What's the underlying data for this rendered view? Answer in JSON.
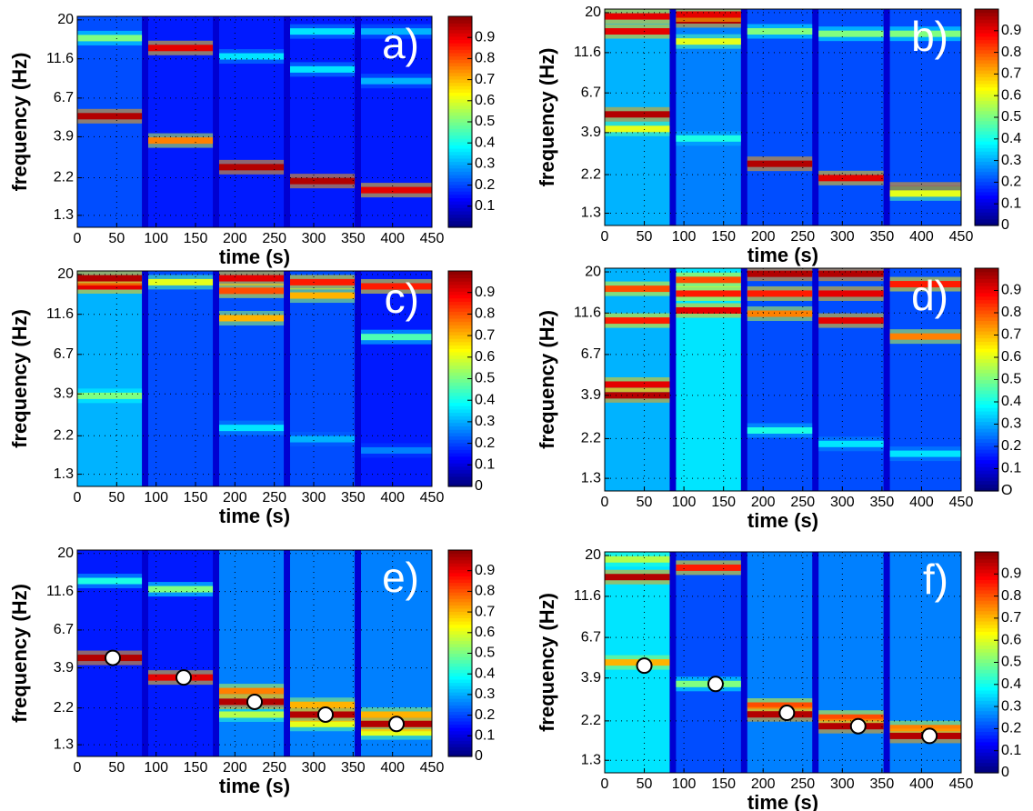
{
  "chart_data": [
    {
      "type": "heatmap",
      "title": "a)",
      "xlabel": "time (s)",
      "ylabel": "frequency (Hz)",
      "xlim": [
        0,
        450
      ],
      "xticks": [
        0,
        50,
        100,
        150,
        200,
        250,
        300,
        350,
        400,
        450
      ],
      "ylim": [
        1.1,
        21
      ],
      "yscale": "log",
      "yticks": [
        1.3,
        2.2,
        3.9,
        6.7,
        11.6,
        20
      ],
      "grid": true,
      "clim": [
        0,
        1
      ],
      "cticks": [
        0.1,
        0.2,
        0.3,
        0.4,
        0.5,
        0.6,
        0.7,
        0.8,
        0.9
      ],
      "background": 0.08,
      "segments": [
        {
          "t": [
            0,
            82
          ],
          "background": 0.2,
          "bands": [
            {
              "f": 5.2,
              "v": 0.95
            },
            {
              "f": 15.5,
              "v": 0.5
            }
          ]
        },
        {
          "t": [
            90,
            172
          ],
          "background": 0.15,
          "bands": [
            {
              "f": 3.7,
              "v": 0.75
            },
            {
              "f": 13.5,
              "v": 0.9
            }
          ]
        },
        {
          "t": [
            180,
            262
          ],
          "background": 0.15,
          "bands": [
            {
              "f": 2.55,
              "v": 0.95
            },
            {
              "f": 12,
              "v": 0.35
            }
          ]
        },
        {
          "t": [
            270,
            352
          ],
          "background": 0.15,
          "bands": [
            {
              "f": 2.1,
              "v": 0.95
            },
            {
              "f": 10,
              "v": 0.35
            },
            {
              "f": 17,
              "v": 0.35
            }
          ]
        },
        {
          "t": [
            360,
            450
          ],
          "background": 0.15,
          "bands": [
            {
              "f": 1.85,
              "v": 0.9
            },
            {
              "f": 8.5,
              "v": 0.3
            },
            {
              "f": 17,
              "v": 0.3
            }
          ]
        }
      ]
    },
    {
      "type": "heatmap",
      "title": "b)",
      "xlabel": "time (s)",
      "ylabel": "frequency (Hz)",
      "xlim": [
        0,
        450
      ],
      "xticks": [
        0,
        50,
        100,
        150,
        200,
        250,
        300,
        350,
        400,
        450
      ],
      "ylim": [
        1.1,
        21
      ],
      "yscale": "log",
      "yticks": [
        1.3,
        2.2,
        3.9,
        6.7,
        11.6,
        20
      ],
      "grid": true,
      "clim": [
        0,
        1
      ],
      "cticks": [
        0,
        0.1,
        0.2,
        0.3,
        0.4,
        0.5,
        0.6,
        0.7,
        0.8,
        0.9
      ],
      "background": 0.08,
      "segments": [
        {
          "t": [
            0,
            82
          ],
          "background": 0.3,
          "bands": [
            {
              "f": 5,
              "v": 0.95
            },
            {
              "f": 4.1,
              "v": 0.6
            },
            {
              "f": 15.5,
              "v": 0.9
            },
            {
              "f": 19,
              "v": 0.9
            }
          ]
        },
        {
          "t": [
            90,
            172
          ],
          "background": 0.25,
          "bands": [
            {
              "f": 3.6,
              "v": 0.4
            },
            {
              "f": 13.5,
              "v": 0.6
            },
            {
              "f": 18,
              "v": 0.95
            },
            {
              "f": 19.5,
              "v": 0.9
            }
          ]
        },
        {
          "t": [
            180,
            262
          ],
          "background": 0.2,
          "bands": [
            {
              "f": 2.55,
              "v": 0.95
            },
            {
              "f": 15.5,
              "v": 0.5
            }
          ]
        },
        {
          "t": [
            270,
            352
          ],
          "background": 0.2,
          "bands": [
            {
              "f": 2.1,
              "v": 0.9
            },
            {
              "f": 15,
              "v": 0.5
            }
          ]
        },
        {
          "t": [
            360,
            450
          ],
          "background": 0.2,
          "bands": [
            {
              "f": 1.8,
              "v": 0.95
            },
            {
              "f": 1.7,
              "v": 0.6
            },
            {
              "f": 15,
              "v": 0.5
            }
          ]
        }
      ]
    },
    {
      "type": "heatmap",
      "title": "c)",
      "xlabel": "time (s)",
      "ylabel": "frequency (Hz)",
      "xlim": [
        0,
        450
      ],
      "xticks": [
        0,
        50,
        100,
        150,
        200,
        250,
        300,
        350,
        400,
        450
      ],
      "ylim": [
        1.1,
        21
      ],
      "yscale": "log",
      "yticks": [
        1.3,
        2.2,
        3.9,
        6.7,
        11.6,
        20
      ],
      "grid": true,
      "clim": [
        0,
        1
      ],
      "cticks": [
        0,
        0.1,
        0.2,
        0.3,
        0.4,
        0.5,
        0.6,
        0.7,
        0.8,
        0.9
      ],
      "background": 0.08,
      "segments": [
        {
          "t": [
            0,
            82
          ],
          "background": 0.3,
          "bands": [
            {
              "f": 3.8,
              "v": 0.5
            },
            {
              "f": 17,
              "v": 0.9
            },
            {
              "f": 19,
              "v": 0.95
            }
          ]
        },
        {
          "t": [
            90,
            172
          ],
          "background": 0.2,
          "bands": [
            {
              "f": 18,
              "v": 0.6
            }
          ]
        },
        {
          "t": [
            180,
            262
          ],
          "background": 0.2,
          "bands": [
            {
              "f": 2.45,
              "v": 0.35
            },
            {
              "f": 11,
              "v": 0.7
            },
            {
              "f": 16,
              "v": 0.8
            },
            {
              "f": 19,
              "v": 0.9
            }
          ]
        },
        {
          "t": [
            270,
            352
          ],
          "background": 0.2,
          "bands": [
            {
              "f": 2.1,
              "v": 0.3
            },
            {
              "f": 15,
              "v": 0.7
            },
            {
              "f": 18,
              "v": 0.85
            }
          ]
        },
        {
          "t": [
            360,
            450
          ],
          "background": 0.15,
          "bands": [
            {
              "f": 1.8,
              "v": 0.25
            },
            {
              "f": 8.5,
              "v": 0.45
            },
            {
              "f": 17,
              "v": 0.85
            }
          ]
        }
      ]
    },
    {
      "type": "heatmap",
      "title": "d)",
      "xlabel": "time (s)",
      "ylabel": "frequency (Hz)",
      "xlim": [
        0,
        450
      ],
      "xticks": [
        0,
        50,
        100,
        150,
        200,
        250,
        300,
        350,
        400,
        450
      ],
      "ylim": [
        1.1,
        21
      ],
      "yscale": "log",
      "yticks": [
        1.3,
        2.2,
        3.9,
        6.7,
        11.6,
        20
      ],
      "grid": true,
      "clim": [
        0,
        1
      ],
      "cticks": [
        {
          "value": 0,
          "label": "O"
        },
        0.1,
        0.2,
        0.3,
        0.4,
        0.5,
        0.6,
        0.7,
        0.8,
        0.9
      ],
      "background": 0.08,
      "segments": [
        {
          "t": [
            0,
            82
          ],
          "background": 0.3,
          "bands": [
            {
              "f": 3.9,
              "v": 0.95
            },
            {
              "f": 4.5,
              "v": 0.9
            },
            {
              "f": 10.5,
              "v": 0.85
            },
            {
              "f": 16,
              "v": 0.8
            }
          ]
        },
        {
          "t": [
            90,
            172
          ],
          "background": 0.35,
          "bands": [
            {
              "f": 12,
              "v": 0.9
            },
            {
              "f": 15,
              "v": 0.85
            },
            {
              "f": 18,
              "v": 0.8
            }
          ]
        },
        {
          "t": [
            180,
            262
          ],
          "background": 0.2,
          "bands": [
            {
              "f": 2.45,
              "v": 0.4
            },
            {
              "f": 11.5,
              "v": 0.75
            },
            {
              "f": 15,
              "v": 0.85
            },
            {
              "f": 19.5,
              "v": 0.95
            }
          ]
        },
        {
          "t": [
            270,
            352
          ],
          "background": 0.2,
          "bands": [
            {
              "f": 2.05,
              "v": 0.35
            },
            {
              "f": 10.5,
              "v": 0.9
            },
            {
              "f": 15,
              "v": 0.9
            },
            {
              "f": 19.5,
              "v": 0.95
            }
          ]
        },
        {
          "t": [
            360,
            450
          ],
          "background": 0.2,
          "bands": [
            {
              "f": 1.8,
              "v": 0.35
            },
            {
              "f": 8.5,
              "v": 0.75
            },
            {
              "f": 17,
              "v": 0.85
            }
          ]
        }
      ]
    },
    {
      "type": "heatmap",
      "title": "e)",
      "xlabel": "time (s)",
      "ylabel": "frequency (Hz)",
      "xlim": [
        0,
        450
      ],
      "xticks": [
        0,
        50,
        100,
        150,
        200,
        250,
        300,
        350,
        400,
        450
      ],
      "ylim": [
        1.1,
        21
      ],
      "yscale": "log",
      "yticks": [
        1.3,
        2.2,
        3.9,
        6.7,
        11.6,
        20
      ],
      "grid": true,
      "clim": [
        0,
        1
      ],
      "cticks": [
        0,
        0.1,
        0.2,
        0.3,
        0.4,
        0.5,
        0.6,
        0.7,
        0.8,
        0.9
      ],
      "background": 0.08,
      "segments": [
        {
          "t": [
            0,
            82
          ],
          "background": 0.15,
          "bands": [
            {
              "f": 4.5,
              "v": 0.95
            },
            {
              "f": 13.5,
              "v": 0.4
            }
          ]
        },
        {
          "t": [
            90,
            172
          ],
          "background": 0.15,
          "bands": [
            {
              "f": 3.4,
              "v": 0.9
            },
            {
              "f": 12,
              "v": 0.5
            }
          ]
        },
        {
          "t": [
            180,
            262
          ],
          "background": 0.25,
          "bands": [
            {
              "f": 2.8,
              "v": 0.75
            },
            {
              "f": 2,
              "v": 0.55
            },
            {
              "f": 2.4,
              "v": 0.95
            }
          ]
        },
        {
          "t": [
            270,
            352
          ],
          "background": 0.25,
          "bands": [
            {
              "f": 2.3,
              "v": 0.7
            },
            {
              "f": 1.75,
              "v": 0.6
            },
            {
              "f": 2.0,
              "v": 0.95
            }
          ]
        },
        {
          "t": [
            360,
            450
          ],
          "background": 0.25,
          "bands": [
            {
              "f": 2.0,
              "v": 0.7
            },
            {
              "f": 1.55,
              "v": 0.6
            },
            {
              "f": 1.75,
              "v": 0.95
            }
          ]
        }
      ],
      "points": {
        "x": [
          45,
          135,
          225,
          315,
          405
        ],
        "y": [
          4.5,
          3.4,
          2.4,
          2.0,
          1.75
        ]
      }
    },
    {
      "type": "heatmap",
      "title": "f)",
      "xlabel": "time (s)",
      "ylabel": "frequency (Hz)",
      "xlim": [
        0,
        450
      ],
      "xticks": [
        0,
        50,
        100,
        150,
        200,
        250,
        300,
        350,
        400,
        450
      ],
      "ylim": [
        1.1,
        21
      ],
      "yscale": "log",
      "yticks": [
        1.3,
        2.2,
        3.9,
        6.7,
        11.6,
        20
      ],
      "grid": true,
      "clim": [
        0,
        1
      ],
      "cticks": [
        0,
        0.1,
        0.2,
        0.3,
        0.4,
        0.5,
        0.6,
        0.7,
        0.8,
        0.9
      ],
      "background": 0.08,
      "segments": [
        {
          "t": [
            0,
            82
          ],
          "background": 0.35,
          "bands": [
            {
              "f": 4.8,
              "v": 0.7
            },
            {
              "f": 15,
              "v": 0.95
            },
            {
              "f": 19,
              "v": 0.55
            }
          ]
        },
        {
          "t": [
            90,
            172
          ],
          "background": 0.2,
          "bands": [
            {
              "f": 3.6,
              "v": 0.5
            },
            {
              "f": 17,
              "v": 0.85
            }
          ]
        },
        {
          "t": [
            180,
            262
          ],
          "background": 0.25,
          "bands": [
            {
              "f": 2.7,
              "v": 0.8
            },
            {
              "f": 2.4,
              "v": 0.95
            }
          ]
        },
        {
          "t": [
            270,
            352
          ],
          "background": 0.25,
          "bands": [
            {
              "f": 2.3,
              "v": 0.8
            },
            {
              "f": 2.05,
              "v": 0.95
            }
          ]
        },
        {
          "t": [
            360,
            450
          ],
          "background": 0.25,
          "bands": [
            {
              "f": 2.0,
              "v": 0.75
            },
            {
              "f": 1.8,
              "v": 0.95
            }
          ]
        }
      ],
      "points": {
        "x": [
          50,
          140,
          230,
          320,
          410
        ],
        "y": [
          4.6,
          3.6,
          2.45,
          2.05,
          1.8
        ]
      }
    }
  ]
}
